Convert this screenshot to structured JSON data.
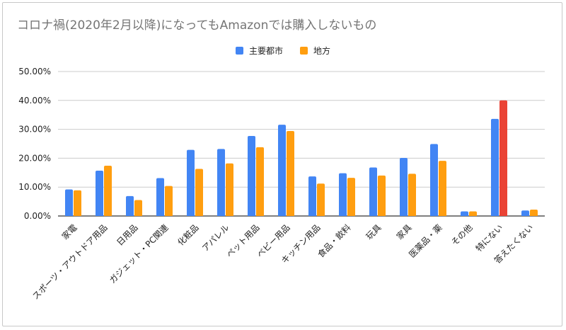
{
  "chart_data": {
    "type": "bar",
    "title": "コロナ禍(2020年2月以降)になってもAmazonでは購入しないもの",
    "categories": [
      "家電",
      "スポーツ・アウトドア用品",
      "日用品",
      "ガジェット・PC関連",
      "化粧品",
      "アパレル",
      "ペット用品",
      "ベビー用品",
      "キッチン用品",
      "食品・飲料",
      "玩具",
      "家具",
      "医薬品・薬",
      "その他",
      "特にない",
      "答えたくない"
    ],
    "series": [
      {
        "name": "主要都市",
        "color": "#4285f4",
        "values": [
          9.2,
          15.7,
          6.9,
          13.1,
          22.9,
          23.2,
          27.7,
          31.6,
          13.7,
          14.8,
          16.8,
          20.1,
          24.9,
          1.6,
          33.6,
          1.9
        ]
      },
      {
        "name": "地方",
        "color": "#ff9e10",
        "values": [
          8.9,
          17.4,
          5.5,
          10.4,
          16.3,
          18.2,
          23.8,
          29.4,
          11.2,
          13.2,
          14.0,
          14.6,
          19.1,
          1.6,
          40.0,
          2.2
        ]
      }
    ],
    "highlight": {
      "series": 1,
      "index": 14,
      "color": "#ea4335"
    },
    "ylim": [
      0,
      50
    ],
    "yticks": [
      "0.00%",
      "10.00%",
      "20.00%",
      "30.00%",
      "40.00%",
      "50.00%"
    ],
    "grid": true,
    "legend_position": "top-center"
  }
}
